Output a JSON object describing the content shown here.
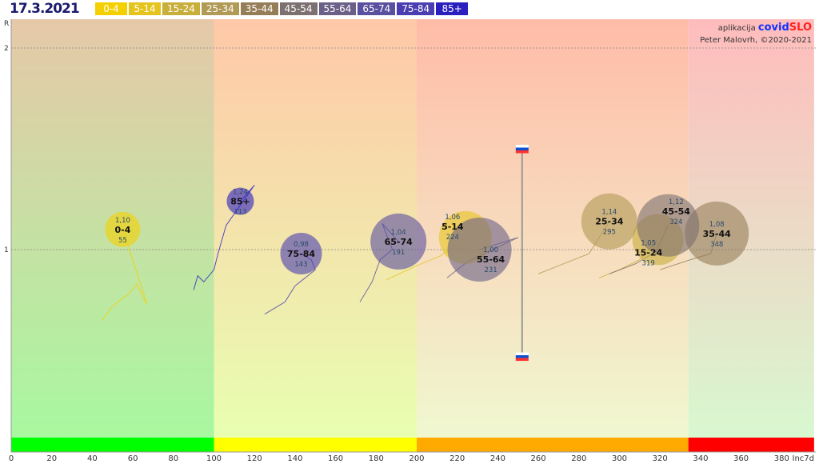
{
  "header": {
    "date": "17.3.2021"
  },
  "credits": {
    "app_prefix": "aplikacija",
    "app_name_a": "covid",
    "app_name_b": "SLO",
    "author": "Peter Malovrh, ©2020-2021"
  },
  "colors": {
    "green": "#00ff00",
    "yellow": "#ffff00",
    "orange": "#ffaa00",
    "red": "#ff0000"
  },
  "chart_data": {
    "type": "scatter",
    "title": "17.3.2021",
    "xlabel": "Inc7d",
    "ylabel": "R",
    "xlim": [
      0,
      396
    ],
    "ylim": [
      0.06,
      2.14
    ],
    "xticks": [
      0,
      20,
      40,
      60,
      80,
      100,
      120,
      140,
      160,
      180,
      200,
      220,
      240,
      260,
      280,
      300,
      320,
      340,
      360,
      380
    ],
    "yticks": [
      1,
      2
    ],
    "zones": [
      {
        "from": 0,
        "to": 100,
        "color": "#00ff00"
      },
      {
        "from": 100,
        "to": 200,
        "color": "#ffff00"
      },
      {
        "from": 200,
        "to": 334,
        "color": "#ffaa00"
      },
      {
        "from": 334,
        "to": 396,
        "color": "#ff0000"
      }
    ],
    "total_range": {
      "x": 252,
      "r_high": 1.5,
      "r_low": 0.47
    },
    "series": [
      {
        "name": "0-4",
        "color": "#f5d000",
        "x": 55,
        "r": 1.1,
        "r_label": "1,10",
        "inc": "55"
      },
      {
        "name": "5-14",
        "color": "#e6c41e",
        "x": 224,
        "r": 1.06,
        "r_label": "1,06",
        "inc": "224"
      },
      {
        "name": "15-24",
        "color": "#c8ae3a",
        "x": 319,
        "r": 1.05,
        "r_label": "1,05",
        "inc": "319"
      },
      {
        "name": "25-34",
        "color": "#b09a55",
        "x": 295,
        "r": 1.14,
        "r_label": "1,14",
        "inc": "295"
      },
      {
        "name": "35-44",
        "color": "#957d58",
        "x": 348,
        "r": 1.08,
        "r_label": "1,08",
        "inc": "348"
      },
      {
        "name": "45-54",
        "color": "#7d7070",
        "x": 324,
        "r": 1.12,
        "r_label": "1,12",
        "inc": "324"
      },
      {
        "name": "55-64",
        "color": "#6a6088",
        "x": 231,
        "r": 1.0,
        "r_label": "1,00",
        "inc": "231"
      },
      {
        "name": "65-74",
        "color": "#5a50a0",
        "x": 191,
        "r": 1.04,
        "r_label": "1,04",
        "inc": "191"
      },
      {
        "name": "75-84",
        "color": "#4a3eb0",
        "x": 143,
        "r": 0.98,
        "r_label": "0,98",
        "inc": "143"
      },
      {
        "name": "85+",
        "color": "#2a20c0",
        "x": 113,
        "r": 1.24,
        "r_label": "1,24",
        "inc": "113"
      }
    ]
  }
}
